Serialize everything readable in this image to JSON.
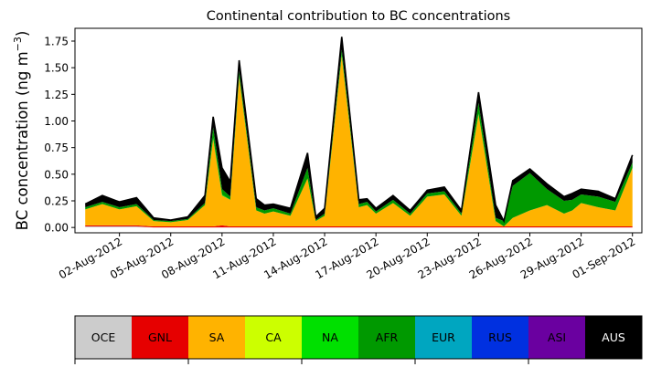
{
  "chart_data": {
    "type": "area",
    "title": "Continental contribution to BC concentrations",
    "ylabel_main": "BC concentration (ng m",
    "ylabel_sup": "−3",
    "ylabel_end": ")",
    "xlabel": "",
    "x_start": "2012-07-31",
    "x_end": "2012-09-01",
    "ylim": [
      -0.05,
      1.87
    ],
    "yticks": [
      0.0,
      0.25,
      0.5,
      0.75,
      1.0,
      1.25,
      1.5,
      1.75
    ],
    "ytick_labels": [
      "0.00",
      "0.25",
      "0.50",
      "0.75",
      "1.00",
      "1.25",
      "1.50",
      "1.75"
    ],
    "xticks": [
      "2012-08-02",
      "2012-08-05",
      "2012-08-08",
      "2012-08-11",
      "2012-08-14",
      "2012-08-17",
      "2012-08-20",
      "2012-08-23",
      "2012-08-26",
      "2012-08-29",
      "2012-09-01"
    ],
    "xtick_labels": [
      "02-Aug-2012",
      "05-Aug-2012",
      "08-Aug-2012",
      "11-Aug-2012",
      "14-Aug-2012",
      "17-Aug-2012",
      "20-Aug-2012",
      "23-Aug-2012",
      "26-Aug-2012",
      "29-Aug-2012",
      "01-Sep-2012"
    ],
    "x": [
      "2012-07-31",
      "2012-08-01",
      "2012-08-02",
      "2012-08-03",
      "2012-08-04",
      "2012-08-05",
      "2012-08-06",
      "2012-08-07",
      "2012-08-07",
      "2012-08-08",
      "2012-08-08",
      "2012-08-09",
      "2012-08-10",
      "2012-08-10",
      "2012-08-11",
      "2012-08-12",
      "2012-08-13",
      "2012-08-13",
      "2012-08-14",
      "2012-08-15",
      "2012-08-16",
      "2012-08-16",
      "2012-08-17",
      "2012-08-18",
      "2012-08-19",
      "2012-08-20",
      "2012-08-21",
      "2012-08-22",
      "2012-08-23",
      "2012-08-24",
      "2012-08-24",
      "2012-08-25",
      "2012-08-26",
      "2012-08-27",
      "2012-08-28",
      "2012-08-28",
      "2012-08-29",
      "2012-08-30",
      "2012-08-31",
      "2012-09-01"
    ],
    "series": [
      {
        "name": "OCE",
        "color": "#cccccc",
        "values": [
          0.01,
          0.01,
          0.01,
          0.01,
          0.0,
          0.0,
          0.0,
          0.0,
          0.0,
          0.0,
          0.0,
          0.0,
          0.0,
          0.0,
          0.0,
          0.0,
          0.0,
          0.0,
          0.0,
          0.0,
          0.0,
          0.0,
          0.0,
          0.0,
          0.0,
          0.0,
          0.0,
          0.0,
          0.0,
          0.0,
          0.0,
          0.0,
          0.0,
          0.0,
          0.0,
          0.0,
          0.0,
          0.0,
          0.0,
          0.0
        ]
      },
      {
        "name": "GNL",
        "color": "#e60000",
        "values": [
          0.01,
          0.01,
          0.01,
          0.01,
          0.01,
          0.01,
          0.01,
          0.01,
          0.01,
          0.02,
          0.01,
          0.01,
          0.01,
          0.01,
          0.01,
          0.01,
          0.01,
          0.01,
          0.01,
          0.01,
          0.01,
          0.01,
          0.01,
          0.01,
          0.01,
          0.01,
          0.01,
          0.01,
          0.01,
          0.01,
          0.01,
          0.01,
          0.01,
          0.01,
          0.01,
          0.01,
          0.01,
          0.01,
          0.01,
          0.01
        ]
      },
      {
        "name": "SA",
        "color": "#ffb300",
        "values": [
          0.15,
          0.2,
          0.15,
          0.18,
          0.05,
          0.04,
          0.06,
          0.2,
          0.82,
          0.28,
          0.25,
          1.4,
          0.15,
          0.12,
          0.14,
          0.1,
          0.45,
          0.05,
          0.1,
          1.6,
          0.18,
          0.2,
          0.12,
          0.22,
          0.1,
          0.28,
          0.3,
          0.1,
          1.05,
          0.05,
          0.0,
          0.08,
          0.15,
          0.2,
          0.12,
          0.15,
          0.22,
          0.18,
          0.15,
          0.55
        ]
      },
      {
        "name": "CA",
        "color": "#ccff00",
        "values": [
          0.0,
          0.0,
          0.0,
          0.0,
          0.0,
          0.0,
          0.0,
          0.0,
          0.0,
          0.0,
          0.0,
          0.0,
          0.0,
          0.0,
          0.0,
          0.0,
          0.0,
          0.0,
          0.0,
          0.0,
          0.0,
          0.0,
          0.0,
          0.0,
          0.0,
          0.0,
          0.0,
          0.0,
          0.0,
          0.0,
          0.0,
          0.0,
          0.0,
          0.0,
          0.0,
          0.0,
          0.0,
          0.0,
          0.0,
          0.0
        ]
      },
      {
        "name": "NA",
        "color": "#00e000",
        "values": [
          0.0,
          0.0,
          0.0,
          0.0,
          0.0,
          0.0,
          0.0,
          0.0,
          0.01,
          0.01,
          0.0,
          0.01,
          0.0,
          0.0,
          0.0,
          0.0,
          0.0,
          0.0,
          0.0,
          0.01,
          0.0,
          0.0,
          0.0,
          0.0,
          0.0,
          0.0,
          0.0,
          0.0,
          0.01,
          0.0,
          0.0,
          0.0,
          0.0,
          0.0,
          0.0,
          0.0,
          0.0,
          0.0,
          0.0,
          0.0
        ]
      },
      {
        "name": "AFR",
        "color": "#009900",
        "values": [
          0.02,
          0.02,
          0.02,
          0.02,
          0.01,
          0.01,
          0.01,
          0.02,
          0.1,
          0.05,
          0.03,
          0.05,
          0.03,
          0.03,
          0.03,
          0.02,
          0.1,
          0.01,
          0.02,
          0.05,
          0.03,
          0.03,
          0.02,
          0.03,
          0.02,
          0.03,
          0.03,
          0.02,
          0.1,
          0.03,
          0.05,
          0.3,
          0.35,
          0.15,
          0.12,
          0.1,
          0.08,
          0.1,
          0.08,
          0.05
        ]
      },
      {
        "name": "EUR",
        "color": "#00a6c0",
        "values": [
          0.0,
          0.0,
          0.0,
          0.0,
          0.0,
          0.0,
          0.0,
          0.0,
          0.0,
          0.0,
          0.0,
          0.0,
          0.0,
          0.0,
          0.0,
          0.0,
          0.0,
          0.0,
          0.0,
          0.0,
          0.0,
          0.0,
          0.0,
          0.0,
          0.0,
          0.0,
          0.0,
          0.0,
          0.0,
          0.0,
          0.0,
          0.0,
          0.0,
          0.0,
          0.0,
          0.0,
          0.0,
          0.0,
          0.0,
          0.0
        ]
      },
      {
        "name": "RUS",
        "color": "#0030e0",
        "values": [
          0.0,
          0.0,
          0.0,
          0.0,
          0.0,
          0.0,
          0.0,
          0.0,
          0.0,
          0.0,
          0.0,
          0.0,
          0.0,
          0.0,
          0.0,
          0.0,
          0.0,
          0.0,
          0.0,
          0.0,
          0.0,
          0.0,
          0.0,
          0.0,
          0.0,
          0.0,
          0.0,
          0.0,
          0.0,
          0.0,
          0.0,
          0.0,
          0.0,
          0.0,
          0.0,
          0.0,
          0.0,
          0.0,
          0.0,
          0.0
        ]
      },
      {
        "name": "ASI",
        "color": "#6a00a0",
        "values": [
          0.0,
          0.0,
          0.0,
          0.0,
          0.0,
          0.0,
          0.0,
          0.0,
          0.0,
          0.0,
          0.0,
          0.0,
          0.0,
          0.0,
          0.0,
          0.0,
          0.0,
          0.0,
          0.0,
          0.0,
          0.0,
          0.0,
          0.0,
          0.0,
          0.0,
          0.0,
          0.0,
          0.0,
          0.0,
          0.0,
          0.0,
          0.0,
          0.0,
          0.0,
          0.0,
          0.0,
          0.0,
          0.0,
          0.0,
          0.0
        ]
      },
      {
        "name": "AUS",
        "color": "#000000",
        "values": [
          0.03,
          0.06,
          0.05,
          0.06,
          0.02,
          0.01,
          0.02,
          0.07,
          0.1,
          0.2,
          0.14,
          0.1,
          0.08,
          0.05,
          0.04,
          0.05,
          0.14,
          0.03,
          0.05,
          0.12,
          0.04,
          0.03,
          0.03,
          0.04,
          0.03,
          0.03,
          0.04,
          0.03,
          0.1,
          0.12,
          0.0,
          0.05,
          0.04,
          0.05,
          0.04,
          0.06,
          0.05,
          0.05,
          0.03,
          0.07
        ]
      }
    ],
    "legend_labels": [
      "OCE",
      "GNL",
      "SA",
      "CA",
      "NA",
      "AFR",
      "EUR",
      "RUS",
      "ASI",
      "AUS"
    ],
    "legend_text_colors": [
      "#000000",
      "#000000",
      "#000000",
      "#000000",
      "#000000",
      "#000000",
      "#000000",
      "#000000",
      "#000000",
      "#ffffff"
    ],
    "legend_placement": "bottom colorbar"
  }
}
